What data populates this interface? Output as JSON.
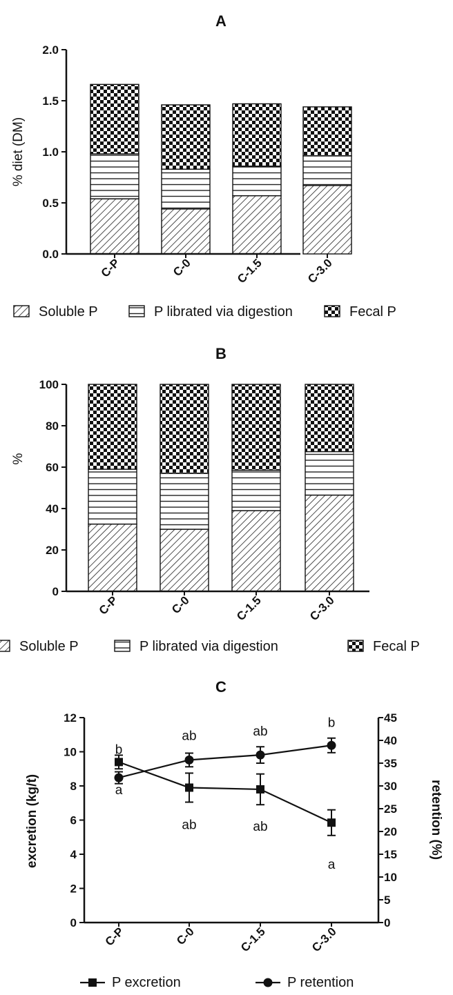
{
  "colors": {
    "ink": "#111111",
    "background": "#ffffff"
  },
  "chart_data": [
    {
      "panel": "A",
      "type": "bar",
      "stacked": true,
      "title": "A",
      "ylabel": "% diet (DM)",
      "xlabel": "",
      "ylim": [
        0,
        2.0
      ],
      "yticks": [
        "0.0",
        "0.5",
        "1.0",
        "1.5",
        "2.0"
      ],
      "categories": [
        "C-P",
        "C-0",
        "C-1.5",
        "C-3.0"
      ],
      "series": [
        {
          "name": "Soluble P",
          "pattern": "diagonal-hatch",
          "values": [
            0.54,
            0.44,
            0.57,
            0.67
          ]
        },
        {
          "name": "P librated via digestion",
          "pattern": "horizontal-lines",
          "values": [
            0.44,
            0.39,
            0.29,
            0.29
          ]
        },
        {
          "name": "Fecal P",
          "pattern": "checkerboard",
          "values": [
            0.68,
            0.63,
            0.61,
            0.48
          ]
        }
      ],
      "legend_position": "bottom",
      "grid": false
    },
    {
      "panel": "B",
      "type": "bar",
      "stacked": true,
      "title": "B",
      "ylabel": "%",
      "xlabel": "",
      "ylim": [
        0,
        100
      ],
      "yticks": [
        "0",
        "20",
        "40",
        "60",
        "80",
        "100"
      ],
      "categories": [
        "C-P",
        "C-0",
        "C-1.5",
        "C-3.0"
      ],
      "series": [
        {
          "name": "Soluble P",
          "pattern": "diagonal-hatch",
          "values": [
            32.5,
            30,
            39,
            46.5
          ]
        },
        {
          "name": "P librated via digestion",
          "pattern": "horizontal-lines",
          "values": [
            26.5,
            27,
            19.5,
            21
          ]
        },
        {
          "name": "Fecal P",
          "pattern": "checkerboard",
          "values": [
            41,
            43,
            41.5,
            32.5
          ]
        }
      ],
      "legend_position": "bottom",
      "grid": false
    },
    {
      "panel": "C",
      "type": "line",
      "title": "C",
      "xlabel": "",
      "categories": [
        "C-P",
        "C-0",
        "C-1.5",
        "C-3.0"
      ],
      "ylabel_left": "excretion (kg/t)",
      "ylabel_right": "retention (%)",
      "ylim_left": [
        0,
        12
      ],
      "ylim_right": [
        0,
        45
      ],
      "yticks_left": [
        "0",
        "2",
        "4",
        "6",
        "8",
        "10",
        "12"
      ],
      "yticks_right": [
        "0",
        "5",
        "10",
        "15",
        "20",
        "25",
        "30",
        "35",
        "40",
        "45"
      ],
      "series": [
        {
          "name": "P excretion",
          "axis": "left",
          "marker": "square",
          "values": [
            9.4,
            7.9,
            7.8,
            5.85
          ],
          "errors": [
            0.4,
            0.85,
            0.9,
            0.75
          ],
          "labels": [
            "b",
            "ab",
            "ab",
            "a"
          ]
        },
        {
          "name": "P retention",
          "axis": "right",
          "marker": "circle",
          "values": [
            31.8,
            35.7,
            36.8,
            38.9
          ],
          "errors": [
            1.3,
            1.5,
            1.8,
            1.6
          ],
          "labels": [
            "a",
            "ab",
            "ab",
            "b"
          ]
        }
      ],
      "legend_position": "bottom",
      "grid": false
    }
  ]
}
